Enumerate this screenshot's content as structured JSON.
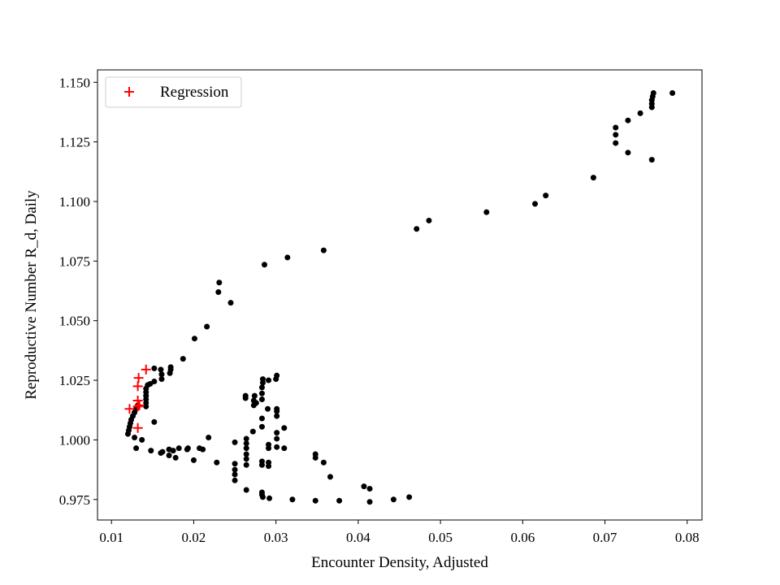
{
  "chart_data": {
    "type": "scatter",
    "title": "",
    "xlabel": "Encounter Density, Adjusted",
    "ylabel": "Reproductive Number R_d, Daily",
    "xlim": [
      0.0083,
      0.0818
    ],
    "ylim": [
      0.9664,
      1.1552
    ],
    "x_ticks": [
      {
        "value": 0.01,
        "label": "0.01"
      },
      {
        "value": 0.02,
        "label": "0.02"
      },
      {
        "value": 0.03,
        "label": "0.03"
      },
      {
        "value": 0.04,
        "label": "0.04"
      },
      {
        "value": 0.05,
        "label": "0.05"
      },
      {
        "value": 0.06,
        "label": "0.06"
      },
      {
        "value": 0.07,
        "label": "0.07"
      },
      {
        "value": 0.08,
        "label": "0.08"
      }
    ],
    "y_ticks": [
      {
        "value": 0.975,
        "label": "0.975"
      },
      {
        "value": 1.0,
        "label": "1.000"
      },
      {
        "value": 1.025,
        "label": "1.025"
      },
      {
        "value": 1.05,
        "label": "1.050"
      },
      {
        "value": 1.075,
        "label": "1.075"
      },
      {
        "value": 1.1,
        "label": "1.100"
      },
      {
        "value": 1.125,
        "label": "1.125"
      },
      {
        "value": 1.15,
        "label": "1.150"
      }
    ],
    "grid": false,
    "legend_position": "top-left",
    "series": [
      {
        "name": "",
        "marker": "dot",
        "color": "#000000",
        "points": [
          [
            0.012,
            1.0025
          ],
          [
            0.0121,
            1.004
          ],
          [
            0.0122,
            1.0055
          ],
          [
            0.0123,
            1.007
          ],
          [
            0.0124,
            1.0085
          ],
          [
            0.0126,
            1.01
          ],
          [
            0.0128,
            1.0115
          ],
          [
            0.013,
            1.013
          ],
          [
            0.0132,
            1.0145
          ],
          [
            0.0128,
            1.001
          ],
          [
            0.013,
            0.9965
          ],
          [
            0.0137,
            1.0
          ],
          [
            0.0142,
            1.014
          ],
          [
            0.0142,
            1.0155
          ],
          [
            0.0142,
            1.017
          ],
          [
            0.0142,
            1.0185
          ],
          [
            0.0142,
            1.02
          ],
          [
            0.0142,
            1.0215
          ],
          [
            0.0144,
            1.023
          ],
          [
            0.0147,
            1.0235
          ],
          [
            0.0152,
            1.0245
          ],
          [
            0.0152,
            1.03
          ],
          [
            0.016,
            1.0295
          ],
          [
            0.0161,
            1.0275
          ],
          [
            0.0161,
            1.0255
          ],
          [
            0.0171,
            1.028
          ],
          [
            0.0172,
            1.0295
          ],
          [
            0.0172,
            1.0305
          ],
          [
            0.0152,
            1.0075
          ],
          [
            0.0148,
            0.9955
          ],
          [
            0.016,
            0.9945
          ],
          [
            0.0162,
            0.995
          ],
          [
            0.017,
            0.996
          ],
          [
            0.017,
            0.9935
          ],
          [
            0.0175,
            0.9955
          ],
          [
            0.0178,
            0.9925
          ],
          [
            0.0182,
            0.9965
          ],
          [
            0.0192,
            0.996
          ],
          [
            0.0193,
            0.9965
          ],
          [
            0.02,
            0.9915
          ],
          [
            0.0207,
            0.9965
          ],
          [
            0.0211,
            0.996
          ],
          [
            0.0218,
            1.001
          ],
          [
            0.0228,
            0.9905
          ],
          [
            0.0187,
            1.034
          ],
          [
            0.0201,
            1.0425
          ],
          [
            0.0216,
            1.0475
          ],
          [
            0.023,
            1.062
          ],
          [
            0.0231,
            1.066
          ],
          [
            0.0245,
            1.0575
          ],
          [
            0.0286,
            1.0735
          ],
          [
            0.0314,
            1.0765
          ],
          [
            0.0358,
            1.0795
          ],
          [
            0.025,
            0.999
          ],
          [
            0.025,
            0.99
          ],
          [
            0.025,
            0.9875
          ],
          [
            0.025,
            0.9855
          ],
          [
            0.025,
            0.983
          ],
          [
            0.0263,
            1.0175
          ],
          [
            0.0263,
            1.0185
          ],
          [
            0.0264,
            1.0005
          ],
          [
            0.0264,
            0.9985
          ],
          [
            0.0264,
            0.9965
          ],
          [
            0.0264,
            0.994
          ],
          [
            0.0264,
            0.992
          ],
          [
            0.0264,
            0.9895
          ],
          [
            0.0264,
            0.979
          ],
          [
            0.0272,
            1.0035
          ],
          [
            0.0273,
            1.0145
          ],
          [
            0.0273,
            1.0165
          ],
          [
            0.0274,
            1.0185
          ],
          [
            0.0276,
            1.0155
          ],
          [
            0.0283,
            1.0055
          ],
          [
            0.0283,
            1.009
          ],
          [
            0.0283,
            1.017
          ],
          [
            0.0283,
            1.0195
          ],
          [
            0.0283,
            1.022
          ],
          [
            0.0284,
            1.024
          ],
          [
            0.0284,
            1.0255
          ],
          [
            0.0283,
            0.991
          ],
          [
            0.0283,
            0.9895
          ],
          [
            0.0283,
            0.978
          ],
          [
            0.0283,
            0.977
          ],
          [
            0.0284,
            0.976
          ],
          [
            0.029,
            1.013
          ],
          [
            0.0291,
            1.025
          ],
          [
            0.0291,
            0.998
          ],
          [
            0.0291,
            0.9965
          ],
          [
            0.0291,
            0.9905
          ],
          [
            0.0291,
            0.989
          ],
          [
            0.0292,
            0.9755
          ],
          [
            0.03,
            1.0255
          ],
          [
            0.0301,
            1.027
          ],
          [
            0.0301,
            1.013
          ],
          [
            0.0301,
            1.012
          ],
          [
            0.0301,
            1.01
          ],
          [
            0.0301,
            1.003
          ],
          [
            0.0301,
            1.0005
          ],
          [
            0.0301,
            0.997
          ],
          [
            0.031,
            1.005
          ],
          [
            0.031,
            0.9965
          ],
          [
            0.032,
            0.975
          ],
          [
            0.0348,
            0.994
          ],
          [
            0.0348,
            0.9925
          ],
          [
            0.0348,
            0.9745
          ],
          [
            0.0358,
            0.9905
          ],
          [
            0.0366,
            0.9845
          ],
          [
            0.0377,
            0.9745
          ],
          [
            0.0407,
            0.9805
          ],
          [
            0.0414,
            0.9795
          ],
          [
            0.0414,
            0.974
          ],
          [
            0.0443,
            0.975
          ],
          [
            0.0462,
            0.976
          ],
          [
            0.0471,
            1.0885
          ],
          [
            0.0486,
            1.092
          ],
          [
            0.0556,
            1.0955
          ],
          [
            0.0615,
            1.099
          ],
          [
            0.0628,
            1.1025
          ],
          [
            0.0686,
            1.11
          ],
          [
            0.0713,
            1.1245
          ],
          [
            0.0713,
            1.128
          ],
          [
            0.0713,
            1.131
          ],
          [
            0.0728,
            1.134
          ],
          [
            0.0728,
            1.1205
          ],
          [
            0.0743,
            1.137
          ],
          [
            0.0757,
            1.1395
          ],
          [
            0.0757,
            1.141
          ],
          [
            0.0757,
            1.1425
          ],
          [
            0.0758,
            1.144
          ],
          [
            0.0759,
            1.1455
          ],
          [
            0.0757,
            1.1175
          ],
          [
            0.0782,
            1.1455
          ]
        ]
      },
      {
        "name": "Regression",
        "marker": "plus",
        "color": "#ff0000",
        "points": [
          [
            0.0122,
            1.013
          ],
          [
            0.0132,
            1.005
          ],
          [
            0.0132,
            1.014
          ],
          [
            0.0132,
            1.0165
          ],
          [
            0.0132,
            1.0225
          ],
          [
            0.0133,
            1.026
          ],
          [
            0.0134,
            1.0145
          ],
          [
            0.0142,
            1.0295
          ]
        ]
      }
    ]
  }
}
